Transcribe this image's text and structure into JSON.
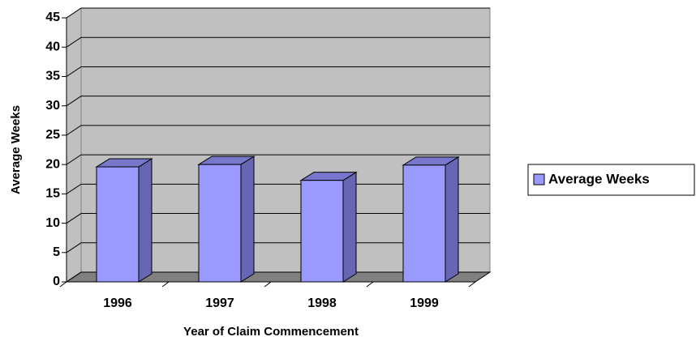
{
  "chart_data": {
    "type": "bar3d",
    "y_label": "Average Weeks",
    "x_label": "Year of Claim Commencement",
    "categories": [
      "1996",
      "1997",
      "1998",
      "1999"
    ],
    "series": [
      {
        "name": "Average Weeks",
        "color": "#9999ff",
        "values": [
          19.6,
          20,
          17.3,
          19.9
        ]
      }
    ],
    "ylim": [
      0,
      45
    ],
    "yticks": [
      0,
      5,
      10,
      15,
      20,
      25,
      30,
      35,
      40,
      45
    ],
    "grid": true,
    "legend": "right"
  }
}
